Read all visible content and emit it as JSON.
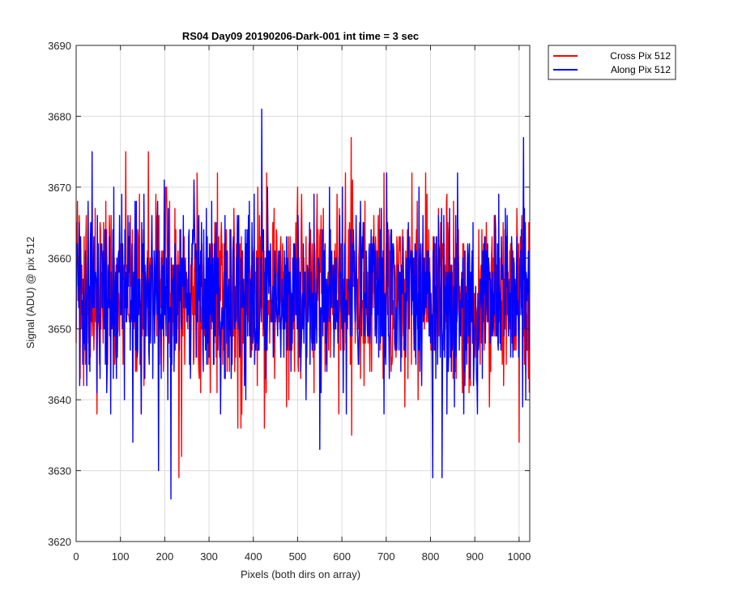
{
  "chart_data": {
    "type": "line",
    "title": "RS04 Day09 20190206-Dark-001 int time = 3 sec",
    "xlabel": "Pixels (both dirs on array)",
    "ylabel": "Signal (ADU) @ pix 512",
    "xlim": [
      0,
      1024
    ],
    "ylim": [
      3620,
      3690
    ],
    "xticks": [
      0,
      100,
      200,
      300,
      400,
      500,
      600,
      700,
      800,
      900,
      1000
    ],
    "yticks": [
      3620,
      3630,
      3640,
      3650,
      3660,
      3670,
      3680,
      3690
    ],
    "grid": true,
    "legend_position": "outside top-right",
    "noise_summary": {
      "mean": 3655,
      "typical_range": [
        3645,
        3666
      ]
    },
    "series": [
      {
        "name": "Cross Pix 512",
        "color": "#ff0000",
        "notable_points": [
          {
            "x": 112,
            "y": 3675
          },
          {
            "x": 163,
            "y": 3675
          },
          {
            "x": 232,
            "y": 3629
          },
          {
            "x": 238,
            "y": 3632
          },
          {
            "x": 365,
            "y": 3636
          },
          {
            "x": 372,
            "y": 3636
          },
          {
            "x": 425,
            "y": 3636
          },
          {
            "x": 621,
            "y": 3677
          },
          {
            "x": 622,
            "y": 3635
          },
          {
            "x": 1000,
            "y": 3634
          }
        ]
      },
      {
        "name": "Along Pix 512",
        "color": "#0000ff",
        "notable_points": [
          {
            "x": 36,
            "y": 3675
          },
          {
            "x": 128,
            "y": 3634
          },
          {
            "x": 186,
            "y": 3630
          },
          {
            "x": 214,
            "y": 3626
          },
          {
            "x": 419,
            "y": 3681
          },
          {
            "x": 550,
            "y": 3633
          },
          {
            "x": 805,
            "y": 3629
          },
          {
            "x": 826,
            "y": 3629
          },
          {
            "x": 1010,
            "y": 3677
          },
          {
            "x": 1015,
            "y": 3640
          }
        ]
      }
    ]
  }
}
